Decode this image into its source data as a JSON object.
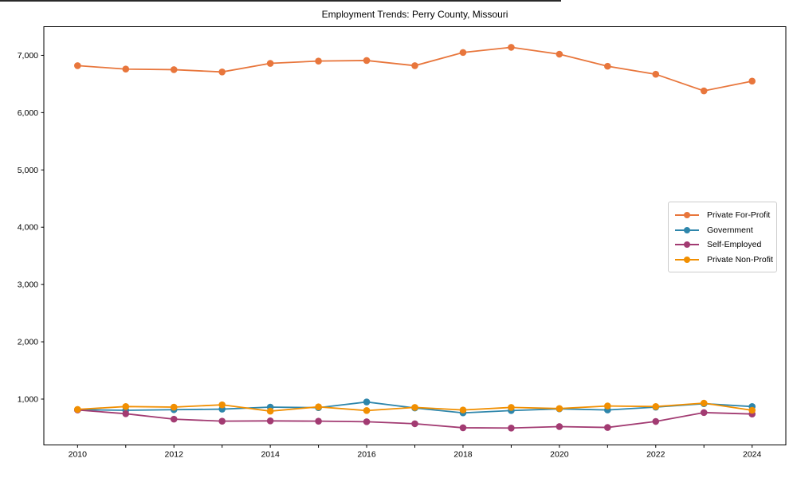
{
  "figure": {
    "title": "Employment Trends: Perry County, Missouri"
  },
  "chart_data": {
    "type": "line",
    "title": "Employment Trends: Perry County, Missouri",
    "x": [
      2010,
      2011,
      2012,
      2013,
      2014,
      2015,
      2016,
      2017,
      2018,
      2019,
      2020,
      2021,
      2022,
      2023,
      2024
    ],
    "xlim": [
      2009.3,
      2024.7
    ],
    "ylim": [
      200,
      7500
    ],
    "x_tick_labels": [
      "2010",
      "2012",
      "2014",
      "2016",
      "2018",
      "2020",
      "2022",
      "2024"
    ],
    "y_ticks": [
      1000,
      2000,
      3000,
      4000,
      5000,
      6000,
      7000
    ],
    "y_tick_labels": [
      "1,000",
      "2,000",
      "3,000",
      "4,000",
      "5,000",
      "6,000",
      "7,000"
    ],
    "grid": false,
    "legend_position": "center-right",
    "series": [
      {
        "name": "Private For-Profit",
        "color": "#E8763C",
        "values": [
          6820,
          6760,
          6750,
          6710,
          6860,
          6900,
          6910,
          6820,
          7050,
          7140,
          7020,
          6810,
          6670,
          6380,
          6550
        ]
      },
      {
        "name": "Government",
        "color": "#2E86AB",
        "values": [
          815,
          805,
          815,
          825,
          860,
          850,
          950,
          845,
          760,
          800,
          830,
          810,
          860,
          920,
          870
        ]
      },
      {
        "name": "Self-Employed",
        "color": "#A23B72",
        "values": [
          810,
          745,
          650,
          615,
          620,
          615,
          605,
          570,
          500,
          495,
          520,
          505,
          610,
          765,
          740
        ]
      },
      {
        "name": "Private Non-Profit",
        "color": "#F18F01",
        "values": [
          820,
          870,
          860,
          900,
          790,
          865,
          800,
          855,
          810,
          855,
          835,
          880,
          870,
          930,
          805
        ]
      }
    ]
  }
}
